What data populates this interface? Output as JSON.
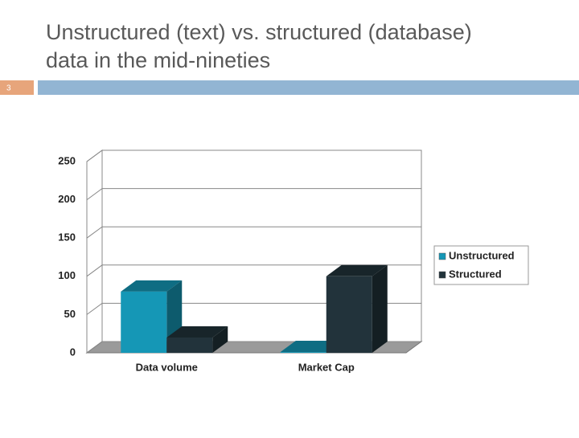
{
  "slide": {
    "title_lines": [
      "Unstructured (text) vs. structured (database)",
      "data in the mid-nineties"
    ],
    "number": "3"
  },
  "chart_data": {
    "type": "bar",
    "categories": [
      "Data volume",
      "Market Cap"
    ],
    "series": [
      {
        "name": "Unstructured",
        "color": "#1597b6",
        "values": [
          80,
          1
        ]
      },
      {
        "name": "Structured",
        "color": "#22333b",
        "values": [
          20,
          100
        ]
      }
    ],
    "ylim": [
      0,
      250
    ],
    "yticks": [
      0,
      50,
      100,
      150,
      200,
      250
    ],
    "grid": true,
    "legend": "right"
  }
}
